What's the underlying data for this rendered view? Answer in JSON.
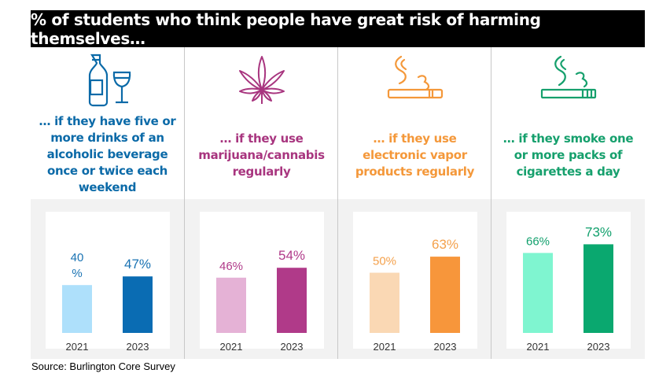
{
  "title": "% of students who think people have great risk of harming themselves…",
  "source": "Source: Burlington Core Survey",
  "panels": [
    {
      "icon": "alcohol-bottle-glass-icon",
      "text": "… if they have five or more drinks of an alcoholic beverage once or twice each weekend",
      "text_color": "#0b6aa8"
    },
    {
      "icon": "cannabis-leaf-icon",
      "text": "… if they use marijuana/cannabis regularly",
      "text_color": "#a8357f"
    },
    {
      "icon": "vape-pen-icon",
      "text": "… if they use electronic vapor products regularly",
      "text_color": "#f4983a"
    },
    {
      "icon": "cigarette-icon",
      "text": "… if they smoke one or more packs of cigarettes a day",
      "text_color": "#16a06d"
    }
  ],
  "chart_data": [
    {
      "type": "bar",
      "categories": [
        "2021",
        "2023"
      ],
      "values": [
        40,
        47
      ],
      "labels": [
        "40\n%",
        "47%"
      ],
      "colors": [
        "#aee0fb",
        "#0a6cb3"
      ],
      "label_colors": [
        "#1a73b3",
        "#1a73b3"
      ],
      "ylim": [
        0,
        100
      ]
    },
    {
      "type": "bar",
      "categories": [
        "2021",
        "2023"
      ],
      "values": [
        46,
        54
      ],
      "labels": [
        "46%",
        "54%"
      ],
      "colors": [
        "#e5b2d6",
        "#b03a89"
      ],
      "label_colors": [
        "#b03a89",
        "#b03a89"
      ],
      "ylim": [
        0,
        100
      ]
    },
    {
      "type": "bar",
      "categories": [
        "2021",
        "2023"
      ],
      "values": [
        50,
        63
      ],
      "labels": [
        "50%",
        "63%"
      ],
      "colors": [
        "#fad8b4",
        "#f7963b"
      ],
      "label_colors": [
        "#f4a14c",
        "#f4a14c"
      ],
      "ylim": [
        0,
        100
      ]
    },
    {
      "type": "bar",
      "categories": [
        "2021",
        "2023"
      ],
      "values": [
        66,
        73
      ],
      "labels": [
        "66%",
        "73%"
      ],
      "colors": [
        "#7ff5d0",
        "#0aa86f"
      ],
      "label_colors": [
        "#12a06d",
        "#12a06d"
      ],
      "ylim": [
        0,
        100
      ]
    }
  ]
}
